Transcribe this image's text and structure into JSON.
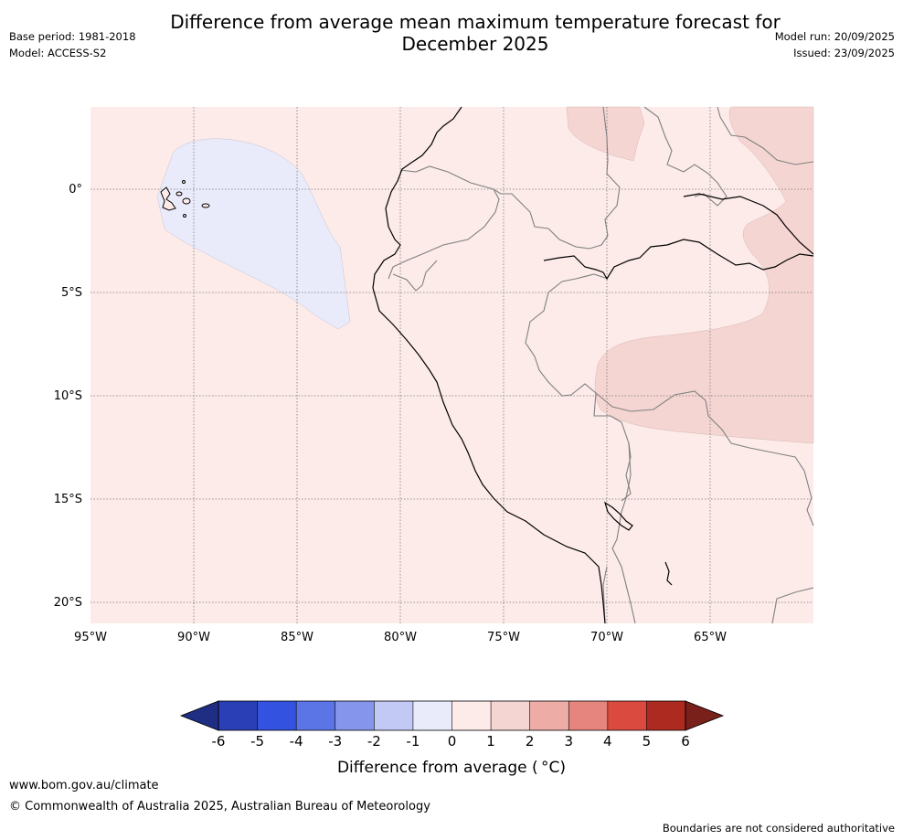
{
  "header": {
    "title_line1": "Difference from average mean maximum temperature forecast for",
    "title_line2": "December 2025",
    "base_period": "Base period: 1981-2018",
    "model": "Model: ACCESS-S2",
    "model_run": "Model run: 20/09/2025",
    "issued": "Issued: 23/09/2025"
  },
  "map": {
    "region": "Western South America (Ecuador, Peru, western Brazil)",
    "lat_labels": [
      "0°",
      "5°S",
      "10°S",
      "15°S",
      "20°S"
    ],
    "lon_labels": [
      "95°W",
      "90°W",
      "85°W",
      "80°W",
      "75°W",
      "70°W",
      "65°W"
    ],
    "background_category": "0 to 1",
    "anomaly_areas": [
      {
        "name": "galapagos-cool-patch",
        "category": "-1 to 0"
      },
      {
        "name": "amazon-warm-patch",
        "category": "1 to 2"
      }
    ]
  },
  "legend": {
    "title": "Difference from average ( °C)",
    "ticks": [
      "-6",
      "-5",
      "-4",
      "-3",
      "-2",
      "-1",
      "0",
      "1",
      "2",
      "3",
      "4",
      "5",
      "6"
    ],
    "colors": [
      "#1f2d83",
      "#2a3fb5",
      "#3452e0",
      "#5b74e6",
      "#8595ec",
      "#c3c9f5",
      "#e9ebfb",
      "#fcebe9",
      "#f4d5d2",
      "#eeaca6",
      "#e6857d",
      "#da4a3f",
      "#ad2a21",
      "#782019"
    ]
  },
  "footer": {
    "url": "www.bom.gov.au/climate",
    "copyright": "© Commonwealth of Australia 2025, Australian Bureau of Meteorology",
    "note": "Boundaries are not considered authoritative"
  }
}
